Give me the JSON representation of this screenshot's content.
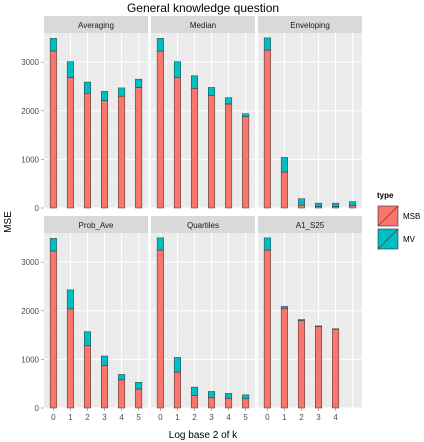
{
  "chart_data": {
    "type": "bar",
    "stacked": true,
    "title": "General knowledge question",
    "xlabel": "Log base 2 of k",
    "ylabel": "MSE",
    "x": [
      0,
      1,
      2,
      3,
      4,
      5
    ],
    "ylim": [
      0,
      3600
    ],
    "yticks": [
      0,
      1000,
      2000,
      3000
    ],
    "grid": true,
    "legend": {
      "title": "type",
      "position": "right",
      "entries": [
        {
          "name": "MSB",
          "color": "#F8766D"
        },
        {
          "name": "MV",
          "color": "#00BFC4"
        }
      ]
    },
    "facets": [
      {
        "label": "Averaging",
        "series": [
          {
            "name": "MSB",
            "values": [
              3230,
              2680,
              2360,
              2210,
              2300,
              2480
            ]
          },
          {
            "name": "MV",
            "values": [
              260,
              330,
              230,
              190,
              170,
              170
            ]
          }
        ]
      },
      {
        "label": "Median",
        "series": [
          {
            "name": "MSB",
            "values": [
              3230,
              2680,
              2460,
              2310,
              2140,
              1880
            ]
          },
          {
            "name": "MV",
            "values": [
              260,
              330,
              260,
              170,
              130,
              60
            ]
          }
        ]
      },
      {
        "label": "Enveloping",
        "series": [
          {
            "name": "MSB",
            "values": [
              3250,
              740,
              60,
              30,
              30,
              50
            ]
          },
          {
            "name": "MV",
            "values": [
              250,
              300,
              130,
              70,
              70,
              80
            ]
          }
        ]
      },
      {
        "label": "Prob_Ave",
        "series": [
          {
            "name": "MSB",
            "values": [
              3230,
              2040,
              1280,
              870,
              580,
              390
            ]
          },
          {
            "name": "MV",
            "values": [
              260,
              390,
              290,
              200,
              110,
              140
            ]
          }
        ]
      },
      {
        "label": "Quartiles",
        "series": [
          {
            "name": "MSB",
            "values": [
              3250,
              740,
              260,
              210,
              200,
              190
            ]
          },
          {
            "name": "MV",
            "values": [
              250,
              300,
              170,
              130,
              100,
              80
            ]
          }
        ]
      },
      {
        "label": "A1_S25",
        "series": [
          {
            "name": "MSB",
            "values": [
              3250,
              2050,
              1800,
              1680,
              1620,
              0
            ]
          },
          {
            "name": "MV",
            "values": [
              250,
              40,
              20,
              10,
              10,
              0
            ]
          }
        ]
      }
    ]
  }
}
